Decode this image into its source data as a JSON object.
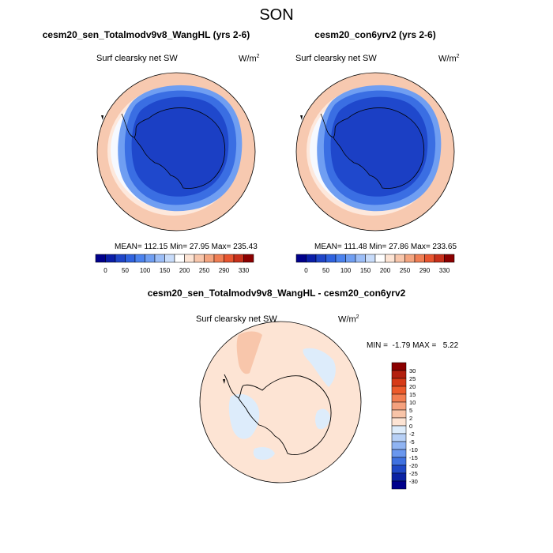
{
  "figure": {
    "title": "SON"
  },
  "panels": [
    {
      "title": "cesm20_sen_Totalmodv9v8_WangHL (yrs 2-6)",
      "variable": "Surf clearsky net SW",
      "units_base": "W/m",
      "units_exp": "2",
      "stats": "MEAN= 112.15  Min=  27.95  Max= 235.43"
    },
    {
      "title": "cesm20_con6yrv2 (yrs 2-6)",
      "variable": "Surf clearsky net SW",
      "units_base": "W/m",
      "units_exp": "2",
      "stats": "MEAN= 111.48  Min=  27.86  Max= 233.65"
    },
    {
      "title": "cesm20_sen_Totalmodv9v8_WangHL - cesm20_con6yrv2",
      "variable": "Surf clearsky net SW",
      "units_base": "W/m",
      "units_exp": "2",
      "stats": "MIN =  -1.79 MAX =   5.22"
    }
  ],
  "colorbars": {
    "absolute": {
      "labels": [
        "0",
        "50",
        "100",
        "150",
        "200",
        "250",
        "290",
        "330"
      ],
      "colors": [
        "#00008b",
        "#0a1ea8",
        "#1f45c8",
        "#2f62df",
        "#4b82ee",
        "#6f9ef2",
        "#9cbef7",
        "#c8dcfa",
        "#ffffff",
        "#fde4d4",
        "#f8c6ab",
        "#f4a47f",
        "#f07e54",
        "#e85530",
        "#c8301b",
        "#8b0000"
      ]
    },
    "difference": {
      "labels": [
        "30",
        "25",
        "20",
        "15",
        "10",
        "5",
        "2",
        "0",
        "-2",
        "-5",
        "-10",
        "-15",
        "-20",
        "-25",
        "-30"
      ],
      "colors": [
        "#8b0000",
        "#b3200f",
        "#d63a17",
        "#ec5a2b",
        "#f27e52",
        "#f5a17e",
        "#f8c4a8",
        "#fde4d4",
        "#ddecfb",
        "#b7d0f6",
        "#90b4f2",
        "#6a97ee",
        "#3f71e0",
        "#1f48c6",
        "#0a22a3",
        "#00008b"
      ]
    }
  },
  "map_colors": {
    "outer": "#f7c9b0",
    "ring_light": "#fde8dc",
    "ring_white": "#f6f9ff",
    "ice_light": "#6f9ef2",
    "ice_mid": "#3a6ee3",
    "ice_dark": "#1f48cc",
    "land": "#1b3fc4",
    "diff_bg": "#fde4d4",
    "diff_neg": "#ddecfb",
    "diff_pos": "#f8c6ab"
  }
}
